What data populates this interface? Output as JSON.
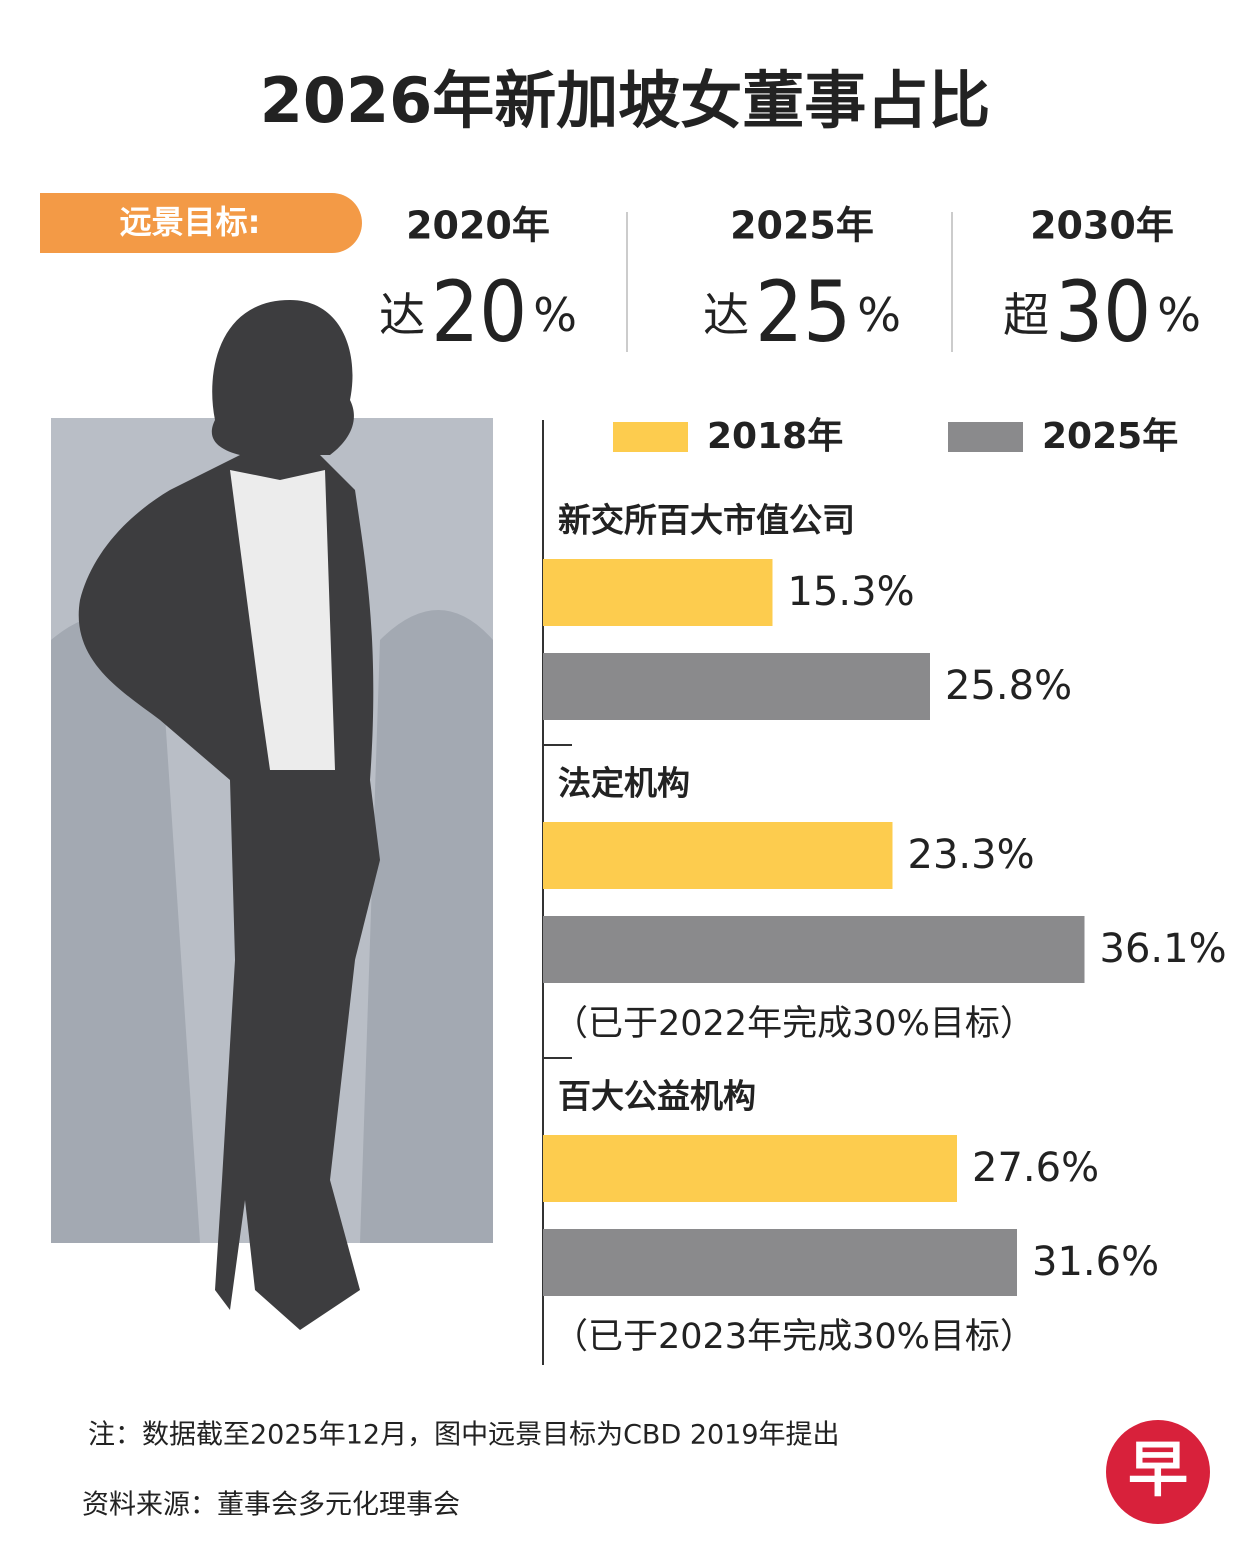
{
  "title": "2026年新加坡女董事占比",
  "targets": {
    "label": "远景目标:",
    "items": [
      {
        "year": "2020年",
        "prefix": "达",
        "value": 20,
        "unit": "%"
      },
      {
        "year": "2025年",
        "prefix": "达",
        "value": 25,
        "unit": "%"
      },
      {
        "year": "2030年",
        "prefix": "超",
        "value": 30,
        "unit": "%"
      }
    ]
  },
  "chart_data": {
    "type": "bar",
    "orientation": "horizontal",
    "categories": [
      "新交所百大市值公司",
      "法定机构",
      "百大公益机构"
    ],
    "series": [
      {
        "name": "2018年",
        "color": "#fdcc4e",
        "values": [
          15.3,
          23.3,
          27.6
        ],
        "value_labels": [
          "15.3%",
          "23.3%",
          "27.6%"
        ]
      },
      {
        "name": "2025年",
        "color": "#8a8a8c",
        "values": [
          25.8,
          36.1,
          31.6
        ],
        "value_labels": [
          "25.8%",
          "36.1%",
          "31.6%"
        ]
      }
    ],
    "category_notes": [
      null,
      "（已于2022年完成30%目标）",
      "（已于2023年完成30%目标）"
    ]
  },
  "note": "注：数据截至2025年12月，图中远景目标为CBD 2019年提出",
  "source": "资料来源：董事会多元化理事会",
  "logo": "早"
}
